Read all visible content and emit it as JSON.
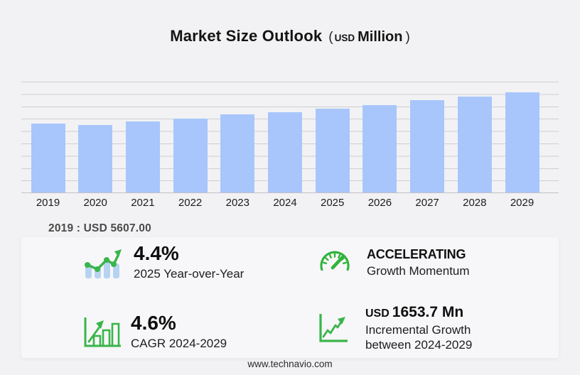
{
  "title": {
    "main": "Market Size Outlook",
    "paren_open": "(",
    "unit_small": "USD",
    "unit_large": "Million",
    "paren_close": ")"
  },
  "chart_data": {
    "type": "bar",
    "title": "Market Size Outlook (USD Million)",
    "unit": "USD Million",
    "categories": [
      2019,
      2020,
      2021,
      2022,
      2023,
      2024,
      2025,
      2026,
      2027,
      2028,
      2029
    ],
    "values": [
      5607.0,
      5490,
      5780,
      6010,
      6360,
      6530,
      6820,
      7110,
      7510,
      7800,
      8184
    ],
    "value_labeled_on_chart": {
      "2019": "USD 5607.00"
    },
    "xlabel": "",
    "ylabel": "",
    "ylim": [
      0,
      9100
    ],
    "grid": true,
    "gridline_color": "#cfcfd3",
    "bar_color": "#a8c6fc",
    "legend": "none"
  },
  "annotation": {
    "text": "2019 : USD  5607.00"
  },
  "stats": {
    "yoy": {
      "icon": "bar-chart-trend-icon",
      "value": "4.4%",
      "label": "2025 Year-over-Year"
    },
    "momentum": {
      "icon": "speedometer-icon",
      "value": "ACCELERATING",
      "label": "Growth Momentum"
    },
    "cagr": {
      "icon": "growth-bars-arrow-icon",
      "value": "4.6%",
      "label": "CAGR 2024-2029"
    },
    "incremental": {
      "icon": "line-graph-axes-icon",
      "value_prefix": "USD",
      "value": "1653.7 Mn",
      "label_line1": "Incremental Growth",
      "label_line2": "between 2024-2029"
    }
  },
  "footer": {
    "website": "www.technavio.com"
  },
  "colors": {
    "background": "#f2f2f4",
    "bar_fill": "#a8c6fc",
    "gridline": "#cfcfd3",
    "accent_green": "#3ab54a",
    "icon_bar_blue": "#b7d3f2",
    "text_dark": "#141414",
    "text_gray": "#4a4a4a"
  }
}
